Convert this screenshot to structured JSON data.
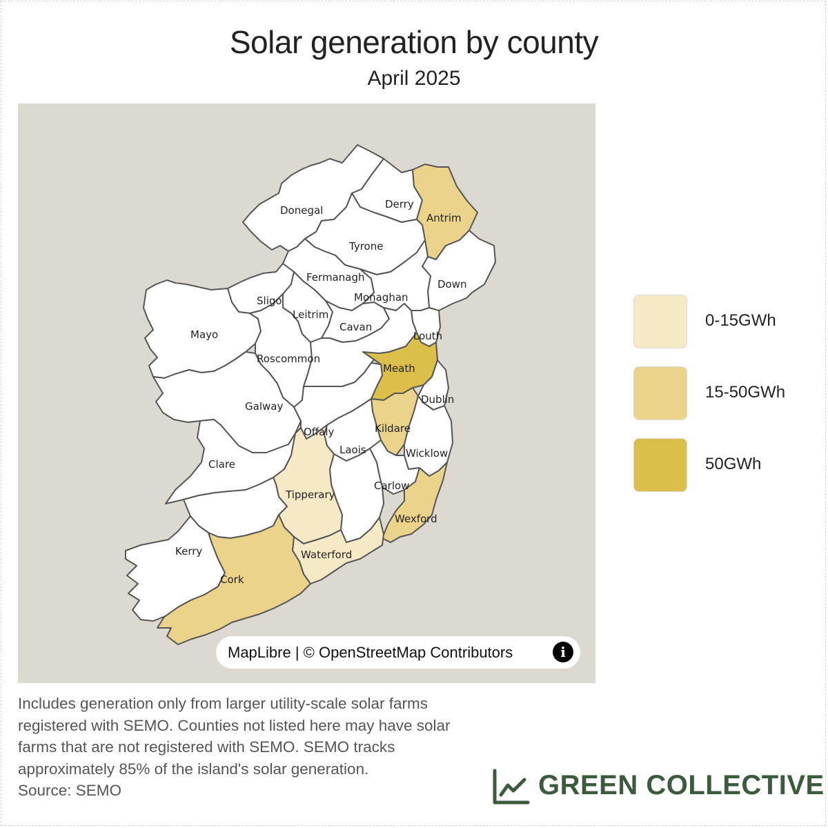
{
  "title": "Solar generation by county",
  "subtitle": "April 2025",
  "legend": [
    {
      "label": "0-15GWh",
      "color": "#f6e9c6"
    },
    {
      "label": "15-50GWh",
      "color": "#ebd48a"
    },
    {
      "label": "50GWh",
      "color": "#dbbf4a"
    }
  ],
  "map": {
    "background_color": "#dcd9d0",
    "default_fill": "#ffffff",
    "counties": [
      {
        "name": "Donegal",
        "tier": null
      },
      {
        "name": "Derry",
        "tier": null
      },
      {
        "name": "Antrim",
        "tier": 1
      },
      {
        "name": "Tyrone",
        "tier": null
      },
      {
        "name": "Fermanagh",
        "tier": null
      },
      {
        "name": "Down",
        "tier": null
      },
      {
        "name": "Sligo",
        "tier": null
      },
      {
        "name": "Monaghan",
        "tier": null
      },
      {
        "name": "Mayo",
        "tier": null
      },
      {
        "name": "Leitrim",
        "tier": null
      },
      {
        "name": "Cavan",
        "tier": null
      },
      {
        "name": "Louth",
        "tier": null
      },
      {
        "name": "Roscommon",
        "tier": null
      },
      {
        "name": "Meath",
        "tier": 2
      },
      {
        "name": "Dublin",
        "tier": null
      },
      {
        "name": "Galway",
        "tier": null
      },
      {
        "name": "Offaly",
        "tier": null
      },
      {
        "name": "Kildare",
        "tier": 1
      },
      {
        "name": "Laois",
        "tier": null
      },
      {
        "name": "Wicklow",
        "tier": null
      },
      {
        "name": "Clare",
        "tier": null
      },
      {
        "name": "Carlow",
        "tier": null
      },
      {
        "name": "Tipperary",
        "tier": 0
      },
      {
        "name": "Wexford",
        "tier": 1
      },
      {
        "name": "Kerry",
        "tier": null
      },
      {
        "name": "Waterford",
        "tier": 0
      },
      {
        "name": "Cork",
        "tier": 1
      }
    ],
    "attribution": "MapLibre | © OpenStreetMap Contributors",
    "info_icon": "info-icon"
  },
  "note": "Includes generation only from larger utility-scale solar farms registered with SEMO. Counties not listed here may have solar farms that are not registered with SEMO. SEMO tracks approximately 85% of the island's solar generation.",
  "source": "Source: SEMO",
  "brand": {
    "name": "GREEN COLLECTIVE",
    "icon": "line-chart-icon",
    "color": "#3c5a3c"
  }
}
